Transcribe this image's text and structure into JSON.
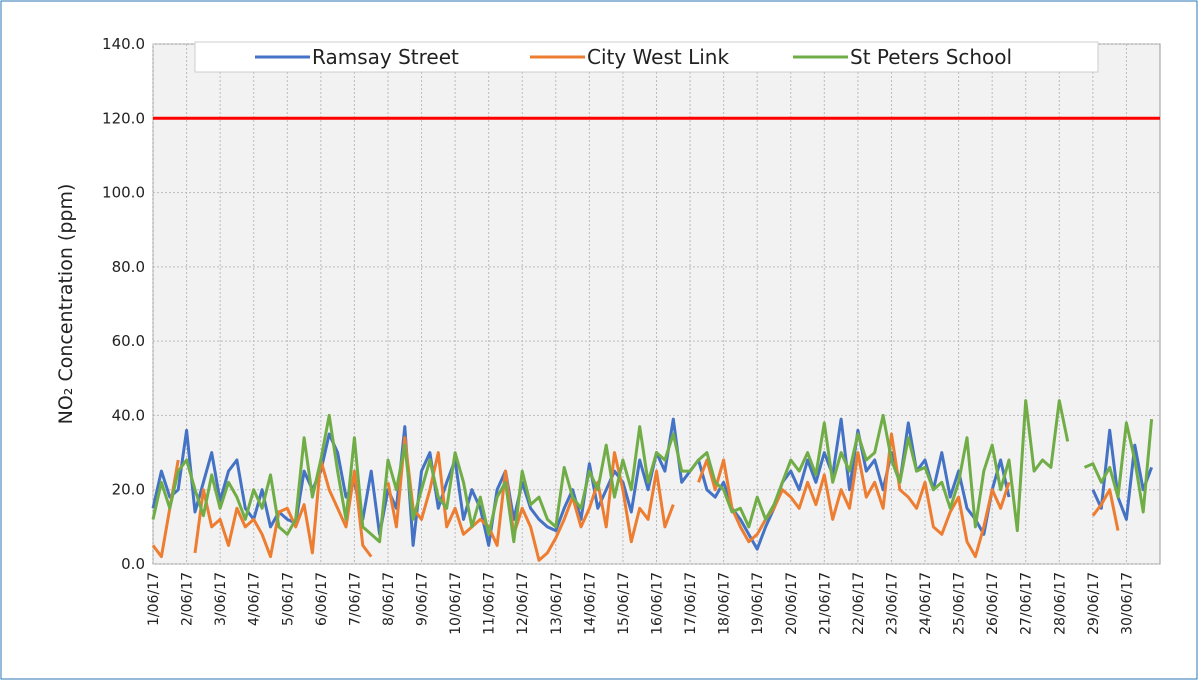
{
  "chart_data": {
    "type": "line",
    "y_label": "NO₂ Concentration (ppm)",
    "categories": [
      "1/06/17",
      null,
      null,
      null,
      "2/06/17",
      null,
      null,
      null,
      "3/06/17",
      null,
      null,
      null,
      "4/06/17",
      null,
      null,
      null,
      "5/06/17",
      null,
      null,
      null,
      "6/06/17",
      null,
      null,
      null,
      "7/06/17",
      null,
      null,
      null,
      "8/06/17",
      null,
      null,
      null,
      "9/06/17",
      null,
      null,
      null,
      "10/06/17",
      null,
      null,
      null,
      "11/06/17",
      null,
      null,
      null,
      "12/06/17",
      null,
      null,
      null,
      "13/06/17",
      null,
      null,
      null,
      "14/06/17",
      null,
      null,
      null,
      "15/06/17",
      null,
      null,
      null,
      "16/06/17",
      null,
      null,
      null,
      "17/06/17",
      null,
      null,
      null,
      "18/06/17",
      null,
      null,
      null,
      "19/06/17",
      null,
      null,
      null,
      "20/06/17",
      null,
      null,
      null,
      "21/06/17",
      null,
      null,
      null,
      "22/06/17",
      null,
      null,
      null,
      "23/06/17",
      null,
      null,
      null,
      "24/06/17",
      null,
      null,
      null,
      "25/06/17",
      null,
      null,
      null,
      "26/06/17",
      null,
      null,
      null,
      "27/06/17",
      null,
      null,
      null,
      "28/06/17",
      null,
      null,
      null,
      "29/06/17",
      null,
      null,
      null,
      "30/06/17",
      null,
      null,
      null
    ],
    "series": [
      {
        "name": "Ramsay Street",
        "color": "#4472c4",
        "values": [
          15,
          25,
          18,
          20,
          36,
          14,
          22,
          30,
          17,
          25,
          28,
          15,
          12,
          20,
          10,
          14,
          12,
          11,
          25,
          20,
          25,
          35,
          30,
          18,
          22,
          12,
          25,
          8,
          20,
          15,
          37,
          5,
          25,
          30,
          15,
          22,
          28,
          12,
          20,
          15,
          5,
          20,
          25,
          12,
          22,
          15,
          12,
          10,
          9,
          15,
          20,
          12,
          27,
          15,
          20,
          25,
          22,
          14,
          28,
          20,
          30,
          25,
          39,
          22,
          25,
          28,
          20,
          18,
          22,
          15,
          12,
          8,
          4,
          10,
          15,
          22,
          25,
          20,
          28,
          22,
          30,
          24,
          39,
          20,
          36,
          25,
          28,
          20,
          30,
          22,
          38,
          25,
          28,
          20,
          30,
          18,
          25,
          15,
          12,
          8,
          20,
          28,
          18,
          null,
          null,
          null,
          null,
          null,
          null,
          null,
          null,
          null,
          20,
          15,
          36,
          18,
          12,
          32,
          20,
          26
        ]
      },
      {
        "name": "City West Link",
        "color": "#ed7d31",
        "values": [
          5,
          2,
          15,
          28,
          null,
          3,
          20,
          10,
          12,
          5,
          15,
          10,
          12,
          8,
          2,
          14,
          15,
          10,
          16,
          3,
          28,
          20,
          15,
          10,
          25,
          5,
          2,
          null,
          22,
          10,
          34,
          15,
          12,
          20,
          30,
          10,
          15,
          8,
          10,
          12,
          10,
          5,
          25,
          8,
          15,
          10,
          1,
          3,
          7,
          12,
          18,
          10,
          15,
          22,
          10,
          30,
          20,
          6,
          15,
          12,
          25,
          10,
          16,
          null,
          null,
          22,
          28,
          20,
          28,
          15,
          10,
          6,
          8,
          12,
          15,
          20,
          18,
          15,
          22,
          16,
          24,
          12,
          20,
          15,
          30,
          18,
          22,
          15,
          35,
          20,
          18,
          15,
          22,
          10,
          8,
          14,
          18,
          6,
          2,
          10,
          20,
          15,
          22,
          null,
          null,
          null,
          null,
          null,
          null,
          null,
          null,
          null,
          13,
          16,
          20,
          9,
          null,
          null,
          null,
          null
        ]
      },
      {
        "name": "St Peters School",
        "color": "#70ad47",
        "values": [
          12,
          22,
          15,
          25,
          28,
          20,
          13,
          24,
          15,
          22,
          18,
          12,
          20,
          15,
          24,
          10,
          8,
          12,
          34,
          18,
          28,
          40,
          25,
          12,
          34,
          10,
          8,
          6,
          28,
          20,
          32,
          12,
          20,
          28,
          18,
          15,
          30,
          22,
          10,
          18,
          8,
          18,
          22,
          6,
          25,
          16,
          18,
          12,
          10,
          26,
          18,
          15,
          25,
          20,
          32,
          18,
          28,
          20,
          37,
          22,
          30,
          28,
          35,
          25,
          25,
          28,
          30,
          22,
          20,
          14,
          15,
          10,
          18,
          12,
          16,
          22,
          28,
          25,
          30,
          24,
          38,
          22,
          30,
          25,
          35,
          28,
          30,
          40,
          28,
          22,
          34,
          25,
          26,
          20,
          22,
          15,
          22,
          34,
          10,
          25,
          32,
          20,
          28,
          9,
          44,
          25,
          28,
          26,
          44,
          33,
          null,
          26,
          27,
          22,
          26,
          18,
          38,
          28,
          14,
          39
        ]
      }
    ],
    "reference_line": {
      "value": 120,
      "color": "#ff0000"
    },
    "ylim": [
      0,
      140
    ],
    "yticks": [
      {
        "value": 0,
        "label": "0.0"
      },
      {
        "value": 20,
        "label": "20.0"
      },
      {
        "value": 40,
        "label": "40.0"
      },
      {
        "value": 60,
        "label": "60.0"
      },
      {
        "value": 80,
        "label": "80.0"
      },
      {
        "value": 100,
        "label": "100.0"
      },
      {
        "value": 120,
        "label": "120.0"
      },
      {
        "value": 140,
        "label": "140.0"
      }
    ],
    "grid": true,
    "legend": "top"
  }
}
